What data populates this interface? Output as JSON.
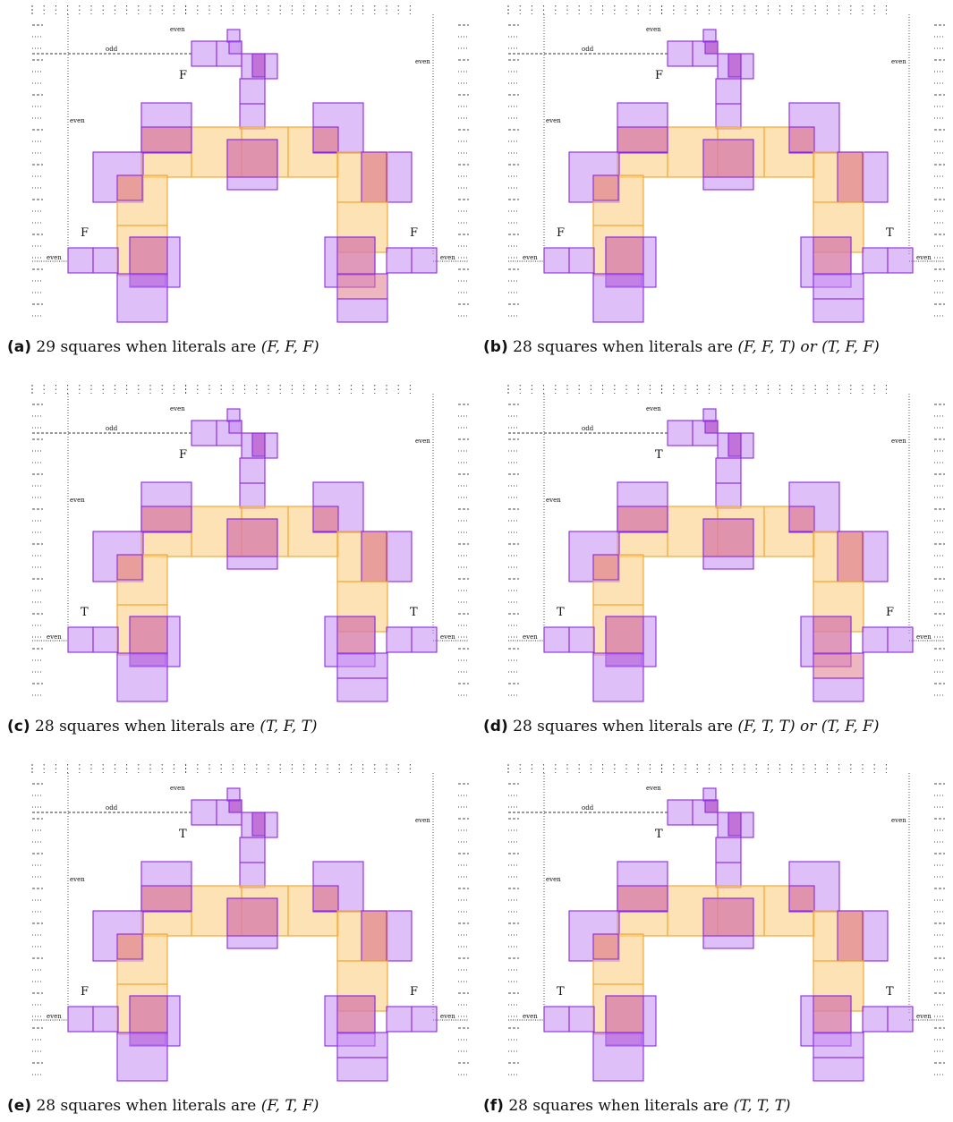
{
  "labels": {
    "odd": "odd",
    "even": "even"
  },
  "colors": {
    "purple_fill": "#c58af0",
    "purple_stroke": "#8a2be2",
    "orange_fill": "#fcd38d",
    "orange_stroke": "#f2a32a",
    "overlap_fill": "#e07a8a",
    "dark_overlap": "#b04ac8"
  },
  "panels": [
    {
      "id": "a",
      "tag": "(a)",
      "count": "29",
      "text_before": " squares when literals are ",
      "literals": "(F, F, F)",
      "literal_top": "F",
      "literal_left": "F",
      "literal_right": "F"
    },
    {
      "id": "b",
      "tag": "(b)",
      "count": "28",
      "text_before": " squares when literals are ",
      "literals": "(F, F, T) or (T, F, F)",
      "literal_top": "F",
      "literal_left": "F",
      "literal_right": "T"
    },
    {
      "id": "c",
      "tag": "(c)",
      "count": "28",
      "text_before": " squares when literals are ",
      "literals": "(T, F, T)",
      "literal_top": "F",
      "literal_left": "T",
      "literal_right": "T"
    },
    {
      "id": "d",
      "tag": "(d)",
      "count": "28",
      "text_before": " squares when literals are ",
      "literals": "(F, T, T) or (T, F, F)",
      "literal_top": "T",
      "literal_left": "T",
      "literal_right": "F"
    },
    {
      "id": "e",
      "tag": "(e)",
      "count": "28",
      "text_before": " squares when literals are ",
      "literals": "(F, T, F)",
      "literal_top": "T",
      "literal_left": "F",
      "literal_right": "F"
    },
    {
      "id": "f",
      "tag": "(f)",
      "count": "28",
      "text_before": " squares when literals are ",
      "literals": "(T, T, T)",
      "literal_top": "T",
      "literal_left": "T",
      "literal_right": "T"
    }
  ]
}
